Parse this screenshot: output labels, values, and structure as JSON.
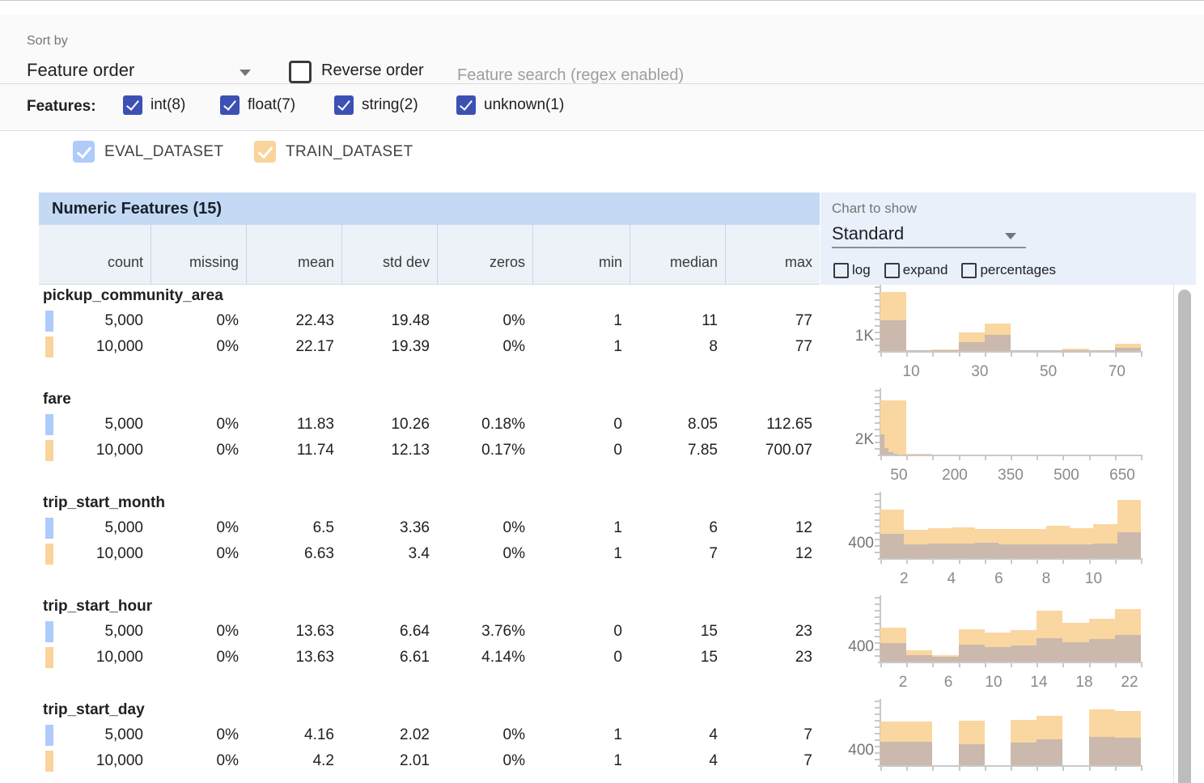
{
  "toolbar": {
    "sort_by_label": "Sort by",
    "sort_by_value": "Feature order",
    "reverse_order_label": "Reverse order",
    "reverse_order_checked": false,
    "search_placeholder": "Feature search (regex enabled)",
    "search_value": ""
  },
  "filters": {
    "label": "Features:",
    "items": [
      {
        "label": "int(8)",
        "checked": true
      },
      {
        "label": "float(7)",
        "checked": true
      },
      {
        "label": "string(2)",
        "checked": true
      },
      {
        "label": "unknown(1)",
        "checked": true
      }
    ],
    "checkbox_color": "#3D50B4"
  },
  "datasets": [
    {
      "name": "EVAL_DATASET",
      "checked": true,
      "color": "#AECBFA"
    },
    {
      "name": "TRAIN_DATASET",
      "checked": true,
      "color": "#F9D49B"
    }
  ],
  "table": {
    "title": "Numeric Features (15)",
    "columns": [
      "count",
      "missing",
      "mean",
      "std dev",
      "zeros",
      "min",
      "median",
      "max"
    ]
  },
  "chart_controls": {
    "label": "Chart to show",
    "value": "Standard",
    "options": [
      {
        "label": "log",
        "checked": false
      },
      {
        "label": "expand",
        "checked": false
      },
      {
        "label": "percentages",
        "checked": false
      }
    ]
  },
  "features": [
    {
      "name": "pickup_community_area",
      "rows": [
        {
          "dataset": "EVAL_DATASET",
          "values": [
            "5,000",
            "0%",
            "22.43",
            "19.48",
            "0%",
            "1",
            "11",
            "77"
          ]
        },
        {
          "dataset": "TRAIN_DATASET",
          "values": [
            "10,000",
            "0%",
            "22.17",
            "19.39",
            "0%",
            "1",
            "8",
            "77"
          ]
        }
      ]
    },
    {
      "name": "fare",
      "rows": [
        {
          "dataset": "EVAL_DATASET",
          "values": [
            "5,000",
            "0%",
            "11.83",
            "10.26",
            "0.18%",
            "0",
            "8.05",
            "112.65"
          ]
        },
        {
          "dataset": "TRAIN_DATASET",
          "values": [
            "10,000",
            "0%",
            "11.74",
            "12.13",
            "0.17%",
            "0",
            "7.85",
            "700.07"
          ]
        }
      ]
    },
    {
      "name": "trip_start_month",
      "rows": [
        {
          "dataset": "EVAL_DATASET",
          "values": [
            "5,000",
            "0%",
            "6.5",
            "3.36",
            "0%",
            "1",
            "6",
            "12"
          ]
        },
        {
          "dataset": "TRAIN_DATASET",
          "values": [
            "10,000",
            "0%",
            "6.63",
            "3.4",
            "0%",
            "1",
            "7",
            "12"
          ]
        }
      ]
    },
    {
      "name": "trip_start_hour",
      "rows": [
        {
          "dataset": "EVAL_DATASET",
          "values": [
            "5,000",
            "0%",
            "13.63",
            "6.64",
            "3.76%",
            "0",
            "15",
            "23"
          ]
        },
        {
          "dataset": "TRAIN_DATASET",
          "values": [
            "10,000",
            "0%",
            "13.63",
            "6.61",
            "4.14%",
            "0",
            "15",
            "23"
          ]
        }
      ]
    },
    {
      "name": "trip_start_day",
      "rows": [
        {
          "dataset": "EVAL_DATASET",
          "values": [
            "5,000",
            "0%",
            "4.16",
            "2.02",
            "0%",
            "1",
            "4",
            "7"
          ]
        },
        {
          "dataset": "TRAIN_DATASET",
          "values": [
            "10,000",
            "0%",
            "4.2",
            "2.01",
            "0%",
            "1",
            "4",
            "7"
          ]
        }
      ]
    }
  ],
  "chart_data": [
    {
      "feature": "pickup_community_area",
      "type": "histogram",
      "x_range": [
        1,
        77
      ],
      "x_ticks": [
        10,
        30,
        50,
        70
      ],
      "y_tick": {
        "label": "1K",
        "value": 1000
      },
      "y_axis_max": 3900,
      "series": [
        {
          "name": "TRAIN_DATASET",
          "color": "#FAD6A0",
          "bins": [
            {
              "x0": 1,
              "x1": 8.6,
              "y": 3650
            },
            {
              "x0": 8.6,
              "x1": 16.2,
              "y": 45
            },
            {
              "x0": 16.2,
              "x1": 23.8,
              "y": 80
            },
            {
              "x0": 23.8,
              "x1": 31.4,
              "y": 1150
            },
            {
              "x0": 31.4,
              "x1": 39,
              "y": 1700
            },
            {
              "x0": 39,
              "x1": 46.6,
              "y": 35
            },
            {
              "x0": 46.6,
              "x1": 54.2,
              "y": 30
            },
            {
              "x0": 54.2,
              "x1": 61.8,
              "y": 150
            },
            {
              "x0": 61.8,
              "x1": 69.4,
              "y": 25
            },
            {
              "x0": 69.4,
              "x1": 77,
              "y": 450
            }
          ]
        },
        {
          "name": "EVAL_DATASET_overlap",
          "color": "#CAB9AC",
          "bins": [
            {
              "x0": 1,
              "x1": 8.6,
              "y": 1900
            },
            {
              "x0": 8.6,
              "x1": 16.2,
              "y": 25
            },
            {
              "x0": 16.2,
              "x1": 23.8,
              "y": 45
            },
            {
              "x0": 23.8,
              "x1": 31.4,
              "y": 550
            },
            {
              "x0": 31.4,
              "x1": 39,
              "y": 1000
            },
            {
              "x0": 39,
              "x1": 46.6,
              "y": 18
            },
            {
              "x0": 46.6,
              "x1": 54.2,
              "y": 15
            },
            {
              "x0": 54.2,
              "x1": 61.8,
              "y": 60
            },
            {
              "x0": 61.8,
              "x1": 69.4,
              "y": 12
            },
            {
              "x0": 69.4,
              "x1": 77,
              "y": 190
            }
          ]
        }
      ]
    },
    {
      "feature": "fare",
      "type": "histogram",
      "x_range": [
        0,
        700
      ],
      "x_ticks": [
        50,
        200,
        350,
        500,
        650
      ],
      "y_tick": {
        "label": "2K",
        "value": 2000
      },
      "y_axis_max": 10300,
      "series": [
        {
          "name": "TRAIN_DATASET",
          "color": "#FAD6A0",
          "bins": [
            {
              "x0": 0,
              "x1": 70,
              "y": 8900
            },
            {
              "x0": 70,
              "x1": 140,
              "y": 120
            }
          ]
        },
        {
          "name": "EVAL_DATASET_overlap",
          "color": "#CAB9AC",
          "bins": [
            {
              "x0": 0,
              "x1": 11.3,
              "y": 3300
            },
            {
              "x0": 11.3,
              "x1": 22.5,
              "y": 1100
            },
            {
              "x0": 22.5,
              "x1": 33.8,
              "y": 350
            },
            {
              "x0": 33.8,
              "x1": 45,
              "y": 150
            }
          ]
        }
      ]
    },
    {
      "feature": "trip_start_month",
      "type": "histogram",
      "x_range": [
        1,
        12
      ],
      "x_ticks": [
        2,
        4,
        6,
        8,
        10
      ],
      "y_tick": {
        "label": "400",
        "value": 400
      },
      "y_axis_max": 1950,
      "series": [
        {
          "name": "TRAIN_DATASET",
          "color": "#FAD6A0",
          "bins": [
            {
              "x0": 1,
              "x1": 2,
              "y": 1500
            },
            {
              "x0": 2,
              "x1": 3,
              "y": 880
            },
            {
              "x0": 3,
              "x1": 4,
              "y": 930
            },
            {
              "x0": 4,
              "x1": 5,
              "y": 940
            },
            {
              "x0": 5,
              "x1": 6,
              "y": 910
            },
            {
              "x0": 6,
              "x1": 7,
              "y": 890
            },
            {
              "x0": 7,
              "x1": 8,
              "y": 900
            },
            {
              "x0": 8,
              "x1": 9,
              "y": 1000
            },
            {
              "x0": 9,
              "x1": 10,
              "y": 920
            },
            {
              "x0": 10,
              "x1": 11,
              "y": 1050
            },
            {
              "x0": 11,
              "x1": 12,
              "y": 1800
            }
          ]
        },
        {
          "name": "EVAL_DATASET_overlap",
          "color": "#CAB9AC",
          "bins": [
            {
              "x0": 1,
              "x1": 2,
              "y": 760
            },
            {
              "x0": 2,
              "x1": 3,
              "y": 430
            },
            {
              "x0": 3,
              "x1": 4,
              "y": 440
            },
            {
              "x0": 4,
              "x1": 5,
              "y": 460
            },
            {
              "x0": 5,
              "x1": 6,
              "y": 480
            },
            {
              "x0": 6,
              "x1": 7,
              "y": 430
            },
            {
              "x0": 7,
              "x1": 8,
              "y": 420
            },
            {
              "x0": 8,
              "x1": 9,
              "y": 430
            },
            {
              "x0": 9,
              "x1": 10,
              "y": 420
            },
            {
              "x0": 10,
              "x1": 11,
              "y": 440
            },
            {
              "x0": 11,
              "x1": 12,
              "y": 790
            }
          ]
        }
      ]
    },
    {
      "feature": "trip_start_hour",
      "type": "histogram",
      "x_range": [
        0,
        23
      ],
      "x_ticks": [
        2,
        6,
        10,
        14,
        18,
        22
      ],
      "y_tick": {
        "label": "400",
        "value": 400
      },
      "y_axis_max": 1840,
      "series": [
        {
          "name": "TRAIN_DATASET",
          "color": "#FAD6A0",
          "bins": [
            {
              "x0": 0,
              "x1": 2.3,
              "y": 1000
            },
            {
              "x0": 2.3,
              "x1": 4.6,
              "y": 330
            },
            {
              "x0": 4.6,
              "x1": 6.9,
              "y": 190
            },
            {
              "x0": 6.9,
              "x1": 9.2,
              "y": 940
            },
            {
              "x0": 9.2,
              "x1": 11.5,
              "y": 850
            },
            {
              "x0": 11.5,
              "x1": 13.8,
              "y": 920
            },
            {
              "x0": 13.8,
              "x1": 16.1,
              "y": 1480
            },
            {
              "x0": 16.1,
              "x1": 18.4,
              "y": 1130
            },
            {
              "x0": 18.4,
              "x1": 20.7,
              "y": 1250
            },
            {
              "x0": 20.7,
              "x1": 23,
              "y": 1530
            }
          ]
        },
        {
          "name": "EVAL_DATASET_overlap",
          "color": "#CAB9AC",
          "bins": [
            {
              "x0": 0,
              "x1": 2.3,
              "y": 550
            },
            {
              "x0": 2.3,
              "x1": 4.6,
              "y": 190
            },
            {
              "x0": 4.6,
              "x1": 6.9,
              "y": 140
            },
            {
              "x0": 6.9,
              "x1": 9.2,
              "y": 500
            },
            {
              "x0": 9.2,
              "x1": 11.5,
              "y": 420
            },
            {
              "x0": 11.5,
              "x1": 13.8,
              "y": 470
            },
            {
              "x0": 13.8,
              "x1": 16.1,
              "y": 680
            },
            {
              "x0": 16.1,
              "x1": 18.4,
              "y": 560
            },
            {
              "x0": 18.4,
              "x1": 20.7,
              "y": 660
            },
            {
              "x0": 20.7,
              "x1": 23,
              "y": 780
            }
          ]
        }
      ]
    },
    {
      "feature": "trip_start_day",
      "type": "histogram",
      "x_range": [
        1,
        7
      ],
      "x_ticks": [],
      "y_tick": {
        "label": "400",
        "value": 400
      },
      "y_axis_max": 1560,
      "series": [
        {
          "name": "TRAIN_DATASET",
          "color": "#FAD6A0",
          "bins": [
            {
              "x0": 1,
              "x1": 1.6,
              "y": 1080
            },
            {
              "x0": 1.6,
              "x1": 2.2,
              "y": 1080
            },
            {
              "x0": 2.8,
              "x1": 3.4,
              "y": 1100
            },
            {
              "x0": 4,
              "x1": 4.6,
              "y": 1120
            },
            {
              "x0": 4.6,
              "x1": 5.2,
              "y": 1220
            },
            {
              "x0": 5.8,
              "x1": 6.4,
              "y": 1380
            },
            {
              "x0": 6.4,
              "x1": 7,
              "y": 1350
            }
          ]
        },
        {
          "name": "EVAL_DATASET_overlap",
          "color": "#CAB9AC",
          "bins": [
            {
              "x0": 1,
              "x1": 1.6,
              "y": 580
            },
            {
              "x0": 1.6,
              "x1": 2.2,
              "y": 580
            },
            {
              "x0": 2.8,
              "x1": 3.4,
              "y": 520
            },
            {
              "x0": 4,
              "x1": 4.6,
              "y": 560
            },
            {
              "x0": 4.6,
              "x1": 5.2,
              "y": 640
            },
            {
              "x0": 5.8,
              "x1": 6.4,
              "y": 700
            },
            {
              "x0": 6.4,
              "x1": 7,
              "y": 680
            }
          ]
        }
      ]
    }
  ]
}
